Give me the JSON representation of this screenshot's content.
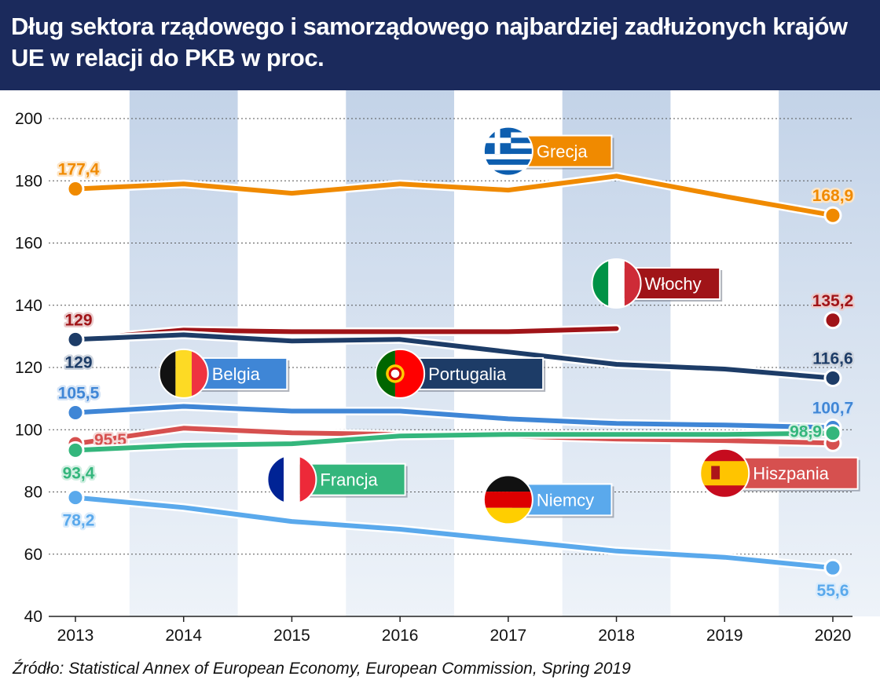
{
  "title": "Dług sektora rządowego i samorządowego najbardziej zadłużonych krajów UE w relacji do PKB w proc.",
  "source": "Źródło: Statistical Annex of European Economy, European Commission, Spring 2019",
  "chart_data": {
    "type": "line",
    "x": [
      "2013",
      "2014",
      "2015",
      "2016",
      "2017",
      "2018",
      "2019",
      "2020"
    ],
    "ylim": [
      40,
      200
    ],
    "yticks": [
      40,
      60,
      80,
      100,
      120,
      140,
      160,
      180,
      200
    ],
    "grid": true,
    "series": [
      {
        "name": "Grecja",
        "color": "#f08a00",
        "flag": "greece-flag-icon",
        "values": [
          177.4,
          179,
          176,
          179,
          177,
          181.5,
          175,
          168.9
        ],
        "labels": [
          {
            "i": 0,
            "text": "177,4",
            "pos": "above"
          },
          {
            "i": 7,
            "text": "168,9",
            "pos": "above"
          }
        ],
        "tag": {
          "x": "2017",
          "y": 189.5
        }
      },
      {
        "name": "Włochy",
        "color": "#a01418",
        "flag": "italy-flag-icon",
        "values": [
          129,
          132,
          131.5,
          131.5,
          131.5,
          132.5,
          null,
          135.2
        ],
        "labels": [
          {
            "i": 0,
            "text": "129",
            "pos": "above"
          },
          {
            "i": 7,
            "text": "135,2",
            "pos": "above"
          }
        ],
        "tag": {
          "x": "2018",
          "y": 147
        }
      },
      {
        "name": "Portugalia",
        "color": "#1d3c67",
        "flag": "portugal-flag-icon",
        "values": [
          129,
          130.5,
          128.5,
          129,
          125,
          121,
          119.5,
          116.6
        ],
        "labels": [
          {
            "i": 0,
            "text": "129",
            "pos": "below"
          },
          {
            "i": 7,
            "text": "116,6",
            "pos": "above"
          }
        ],
        "tag": {
          "x": "2016",
          "y": 118
        }
      },
      {
        "name": "Belgia",
        "color": "#3f86d6",
        "flag": "belgium-flag-icon",
        "values": [
          105.5,
          107.5,
          106,
          106,
          103.5,
          102,
          101.5,
          100.7
        ],
        "labels": [
          {
            "i": 0,
            "text": "105,5",
            "pos": "above"
          },
          {
            "i": 7,
            "text": "100,7",
            "pos": "above"
          }
        ],
        "tag": {
          "x": "2014",
          "y": 118
        }
      },
      {
        "name": "Hiszpania",
        "color": "#d6504f",
        "flag": "spain-flag-icon",
        "values": [
          95.5,
          100.5,
          99,
          98.5,
          98,
          97,
          96.5,
          95.7
        ],
        "labels": [
          {
            "i": 0,
            "text": "95,5",
            "pos": "right"
          },
          {
            "i": 7,
            "text": "95,7",
            "pos": "below"
          }
        ],
        "tag": {
          "x": "2019",
          "y": 86
        }
      },
      {
        "name": "Francja",
        "color": "#34b67c",
        "flag": "france-flag-icon",
        "values": [
          93.4,
          95,
          95.5,
          98,
          98.5,
          98.5,
          98.5,
          98.9
        ],
        "labels": [
          {
            "i": 0,
            "text": "93,4",
            "pos": "below"
          },
          {
            "i": 7,
            "text": "98,9",
            "pos": "left"
          }
        ],
        "tag": {
          "x": "2015",
          "y": 84
        }
      },
      {
        "name": "Niemcy",
        "color": "#5aa9ec",
        "flag": "germany-flag-icon",
        "values": [
          78.2,
          75,
          70.5,
          68,
          64.5,
          61,
          59,
          55.6
        ],
        "labels": [
          {
            "i": 0,
            "text": "78,2",
            "pos": "below"
          },
          {
            "i": 7,
            "text": "55,6",
            "pos": "below"
          }
        ],
        "tag": {
          "x": "2017",
          "y": 77.5
        }
      }
    ]
  }
}
